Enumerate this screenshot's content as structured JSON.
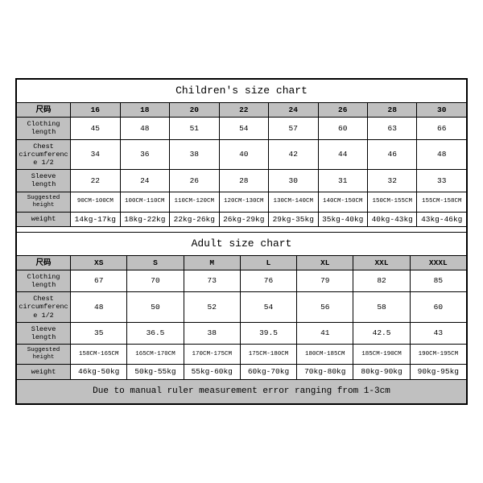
{
  "children": {
    "title": "Children's size chart",
    "size_label": "尺码",
    "sizes": [
      "16",
      "18",
      "20",
      "22",
      "24",
      "26",
      "28",
      "30"
    ],
    "rows": [
      {
        "label": "Clothing length",
        "values": [
          "45",
          "48",
          "51",
          "54",
          "57",
          "60",
          "63",
          "66"
        ]
      },
      {
        "label": "Chest circumference 1/2",
        "values": [
          "34",
          "36",
          "38",
          "40",
          "42",
          "44",
          "46",
          "48"
        ]
      },
      {
        "label": "Sleeve length",
        "values": [
          "22",
          "24",
          "26",
          "28",
          "30",
          "31",
          "32",
          "33"
        ]
      },
      {
        "label": "Suggested height",
        "values": [
          "90CM-100CM",
          "100CM-110CM",
          "110CM-120CM",
          "120CM-130CM",
          "130CM-140CM",
          "140CM-150CM",
          "150CM-155CM",
          "155CM-158CM"
        ],
        "small": true
      },
      {
        "label": "weight",
        "values": [
          "14kg-17kg",
          "18kg-22kg",
          "22kg-26kg",
          "26kg-29kg",
          "29kg-35kg",
          "35kg-40kg",
          "40kg-43kg",
          "43kg-46kg"
        ]
      }
    ]
  },
  "adult": {
    "title": "Adult size chart",
    "size_label": "尺码",
    "sizes": [
      "XS",
      "S",
      "M",
      "L",
      "XL",
      "XXL",
      "XXXL"
    ],
    "rows": [
      {
        "label": "Clothing length",
        "values": [
          "67",
          "70",
          "73",
          "76",
          "79",
          "82",
          "85"
        ]
      },
      {
        "label": "Chest circumference 1/2",
        "values": [
          "48",
          "50",
          "52",
          "54",
          "56",
          "58",
          "60"
        ]
      },
      {
        "label": "Sleeve length",
        "values": [
          "35",
          "36.5",
          "38",
          "39.5",
          "41",
          "42.5",
          "43"
        ]
      },
      {
        "label": "Suggested height",
        "values": [
          "158CM-165CM",
          "165CM-170CM",
          "170CM-175CM",
          "175CM-180CM",
          "180CM-185CM",
          "185CM-190CM",
          "190CM-195CM"
        ],
        "small": true
      },
      {
        "label": "weight",
        "values": [
          "46kg-50kg",
          "50kg-55kg",
          "55kg-60kg",
          "60kg-70kg",
          "70kg-80kg",
          "80kg-90kg",
          "90kg-95kg"
        ]
      }
    ]
  },
  "note": "Due to manual ruler measurement error ranging from 1-3cm",
  "style": {
    "header_bg": "#c0c0c0",
    "border_color": "#000000",
    "background": "#ffffff",
    "title_fontsize": 13,
    "cell_fontsize": 9.5,
    "small_fontsize": 7.5
  }
}
